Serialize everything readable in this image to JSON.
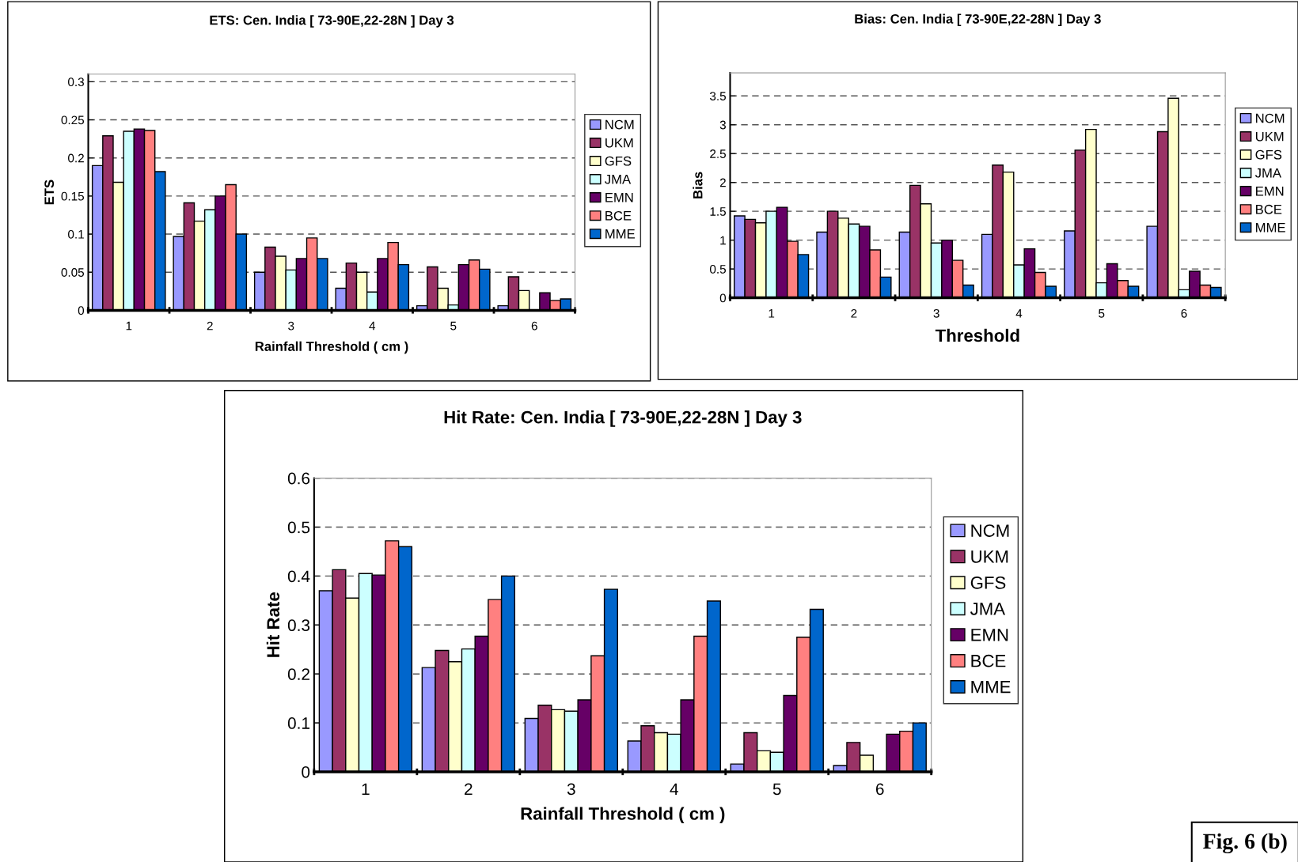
{
  "chart_data": [
    {
      "type": "bar",
      "title": "ETS: Cen. India [ 73-90E,22-28N ] Day 3",
      "xlabel": "Rainfall Threshold ( cm )",
      "ylabel": "ETS",
      "categories": [
        "1",
        "2",
        "3",
        "4",
        "5",
        "6"
      ],
      "ylim": [
        0,
        0.31
      ],
      "yticks": [
        0,
        0.05,
        0.1,
        0.15,
        0.2,
        0.25,
        0.3
      ],
      "grid": "y",
      "legend": "right",
      "series": [
        {
          "name": "NCM",
          "color": "#9999ff",
          "values": [
            0.19,
            0.097,
            0.05,
            0.029,
            0.006,
            0.006
          ]
        },
        {
          "name": "UKM",
          "color": "#993366",
          "values": [
            0.229,
            0.141,
            0.083,
            0.062,
            0.057,
            0.044
          ]
        },
        {
          "name": "GFS",
          "color": "#ffffcc",
          "values": [
            0.168,
            0.117,
            0.071,
            0.05,
            0.029,
            0.026
          ]
        },
        {
          "name": "JMA",
          "color": "#ccffff",
          "values": [
            0.235,
            0.132,
            0.053,
            0.024,
            0.007,
            null
          ]
        },
        {
          "name": "EMN",
          "color": "#660066",
          "values": [
            0.238,
            0.15,
            0.068,
            0.068,
            0.06,
            0.023
          ]
        },
        {
          "name": "BCE",
          "color": "#ff8080",
          "values": [
            0.236,
            0.165,
            0.095,
            0.089,
            0.066,
            0.013
          ]
        },
        {
          "name": "MME",
          "color": "#0066cc",
          "values": [
            0.182,
            0.1,
            0.068,
            0.06,
            0.054,
            0.015
          ]
        }
      ]
    },
    {
      "type": "bar",
      "title": "Bias: Cen. India [ 73-90E,22-28N ] Day 3",
      "xlabel": "Threshold",
      "ylabel": "Bias",
      "categories": [
        "1",
        "2",
        "3",
        "4",
        "5",
        "6"
      ],
      "ylim": [
        0,
        3.9
      ],
      "yticks": [
        0,
        0.5,
        1,
        1.5,
        2,
        2.5,
        3,
        3.5
      ],
      "grid": "y",
      "legend": "right",
      "series": [
        {
          "name": "NCM",
          "color": "#9999ff",
          "values": [
            1.42,
            1.14,
            1.14,
            1.1,
            1.16,
            1.24
          ]
        },
        {
          "name": "UKM",
          "color": "#993366",
          "values": [
            1.36,
            1.5,
            1.95,
            2.3,
            2.56,
            2.88
          ]
        },
        {
          "name": "GFS",
          "color": "#ffffcc",
          "values": [
            1.3,
            1.38,
            1.63,
            2.18,
            2.92,
            3.46
          ]
        },
        {
          "name": "JMA",
          "color": "#ccffff",
          "values": [
            1.5,
            1.28,
            0.95,
            0.57,
            0.26,
            0.14
          ]
        },
        {
          "name": "EMN",
          "color": "#660066",
          "values": [
            1.57,
            1.24,
            1.0,
            0.85,
            0.59,
            0.46
          ]
        },
        {
          "name": "BCE",
          "color": "#ff8080",
          "values": [
            0.98,
            0.83,
            0.65,
            0.44,
            0.3,
            0.22
          ]
        },
        {
          "name": "MME",
          "color": "#0066cc",
          "values": [
            0.75,
            0.36,
            0.22,
            0.2,
            0.2,
            0.18
          ]
        }
      ]
    },
    {
      "type": "bar",
      "title": "Hit Rate: Cen. India [ 73-90E,22-28N ] Day 3",
      "xlabel": "Rainfall Threshold ( cm )",
      "ylabel": "Hit Rate",
      "categories": [
        "1",
        "2",
        "3",
        "4",
        "5",
        "6"
      ],
      "ylim": [
        0,
        0.6
      ],
      "yticks": [
        0,
        0.1,
        0.2,
        0.3,
        0.4,
        0.5,
        0.6
      ],
      "grid": "y",
      "legend": "right",
      "annotations": [
        "Fig. 6 (b)"
      ],
      "series": [
        {
          "name": "NCM",
          "color": "#9999ff",
          "values": [
            0.37,
            0.213,
            0.109,
            0.063,
            0.016,
            0.013
          ]
        },
        {
          "name": "UKM",
          "color": "#993366",
          "values": [
            0.413,
            0.248,
            0.136,
            0.094,
            0.08,
            0.06
          ]
        },
        {
          "name": "GFS",
          "color": "#ffffcc",
          "values": [
            0.355,
            0.225,
            0.127,
            0.08,
            0.043,
            0.034
          ]
        },
        {
          "name": "JMA",
          "color": "#ccffff",
          "values": [
            0.405,
            0.251,
            0.124,
            0.077,
            0.04,
            null
          ]
        },
        {
          "name": "EMN",
          "color": "#660066",
          "values": [
            0.402,
            0.277,
            0.147,
            0.147,
            0.156,
            0.077
          ]
        },
        {
          "name": "BCE",
          "color": "#ff8080",
          "values": [
            0.472,
            0.352,
            0.237,
            0.277,
            0.275,
            0.083
          ]
        },
        {
          "name": "MME",
          "color": "#0066cc",
          "values": [
            0.46,
            0.4,
            0.373,
            0.349,
            0.332,
            0.1
          ]
        }
      ]
    }
  ]
}
